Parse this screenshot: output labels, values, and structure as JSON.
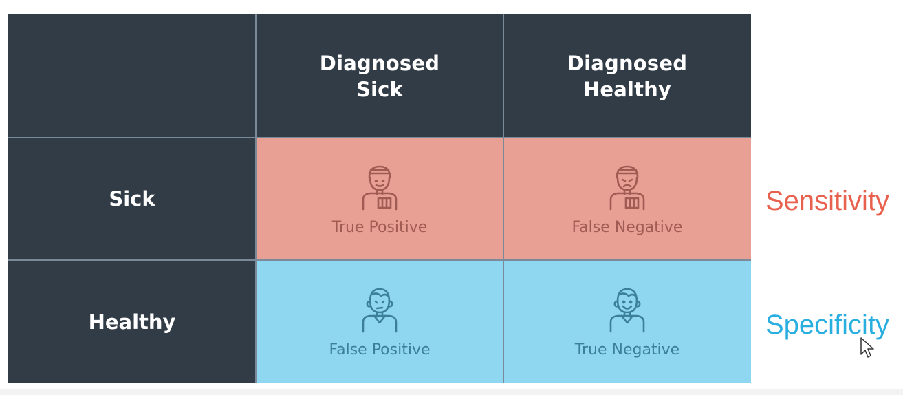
{
  "matrix": {
    "col_headers": [
      {
        "line1": "Diagnosed",
        "line2": "Sick"
      },
      {
        "line1": "Diagnosed",
        "line2": "Healthy"
      }
    ],
    "row_headers": [
      "Sick",
      "Healthy"
    ],
    "cells": [
      {
        "label": "True Positive",
        "icon": "sick-person-icon"
      },
      {
        "label": "False Negative",
        "icon": "sad-sick-person-icon"
      },
      {
        "label": "False Positive",
        "icon": "worried-person-icon"
      },
      {
        "label": "True Negative",
        "icon": "happy-person-icon"
      }
    ]
  },
  "side_labels": {
    "sensitivity": "Sensitivity",
    "specificity": "Specificity"
  },
  "colors": {
    "header_bg": "#323c46",
    "sick_row_bg": "#e89f94",
    "healthy_row_bg": "#8fd7f1",
    "sensitivity": "#e8614e",
    "specificity": "#29aee0"
  }
}
